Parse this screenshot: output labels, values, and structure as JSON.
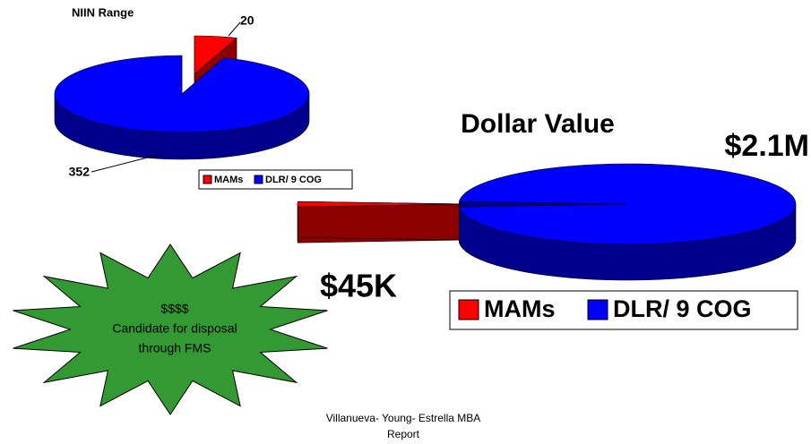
{
  "chart_data": [
    {
      "type": "pie",
      "title": "NIIN Range",
      "categories": [
        "MAMs",
        "DLR/ 9 COG"
      ],
      "values": [
        20,
        352
      ],
      "colors": [
        "#ff0000",
        "#0000ff"
      ]
    },
    {
      "type": "pie",
      "title": "Dollar Value",
      "categories": [
        "MAMs",
        "DLR/ 9 COG"
      ],
      "values": [
        45000,
        2100000
      ],
      "value_labels": [
        "$45K",
        "$2.1M"
      ],
      "colors": [
        "#ff0000",
        "#0000ff"
      ]
    }
  ],
  "callout": {
    "lines": [
      "$$$$",
      "Candidate for disposal",
      "through FMS"
    ]
  },
  "footer": {
    "lines": [
      "Villanueva- Young- Estrella MBA",
      "Report"
    ]
  }
}
